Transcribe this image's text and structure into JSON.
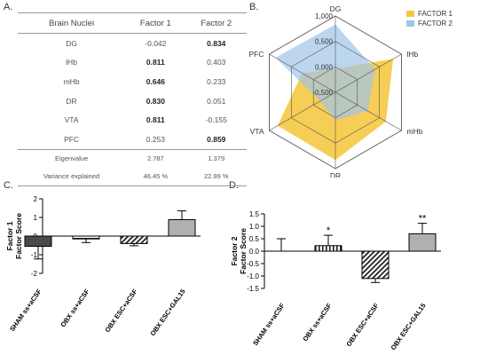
{
  "panels": {
    "a": "A.",
    "b": "B.",
    "c": "C.",
    "d": "D."
  },
  "table": {
    "headers": [
      "Brain Nuclei",
      "Factor 1",
      "Factor 2"
    ],
    "rows": [
      {
        "name": "DG",
        "f1": "-0.042",
        "f2": "0.834",
        "f1_bold": false,
        "f2_bold": true
      },
      {
        "name": "lHb",
        "f1": "0.811",
        "f2": "0.403",
        "f1_bold": true,
        "f2_bold": false
      },
      {
        "name": "mHb",
        "f1": "0.646",
        "f2": "0.233",
        "f1_bold": true,
        "f2_bold": false
      },
      {
        "name": "DR",
        "f1": "0.830",
        "f2": "0.051",
        "f1_bold": true,
        "f2_bold": false
      },
      {
        "name": "VTA",
        "f1": "0.811",
        "f2": "-0.155",
        "f1_bold": true,
        "f2_bold": false
      },
      {
        "name": "PFC",
        "f1": "0.253",
        "f2": "0.859",
        "f1_bold": false,
        "f2_bold": true
      }
    ],
    "eigenvalue": {
      "label": "Eigenvalue",
      "f1": "2.787",
      "f2": "1.379"
    },
    "variance": {
      "label": "Variance explained",
      "f1": "46.45 %",
      "f2": "22.99 %"
    }
  },
  "colors": {
    "factor1": "#f5c842",
    "factor2": "#9fc5e8",
    "bar_dark": "#4a4a4a",
    "bar_grey": "#b0b0b0"
  },
  "chart_data": [
    {
      "type": "radar",
      "axes": [
        "DG",
        "lHb",
        "mHb",
        "DR",
        "VTA",
        "PFC"
      ],
      "tick_labels": [
        "1,000",
        "0,500",
        "0,000",
        "-0,500"
      ],
      "range": [
        -0.5,
        1.0
      ],
      "series": [
        {
          "name": "FACTOR 1",
          "values": [
            -0.042,
            0.811,
            0.646,
            0.83,
            0.811,
            0.253
          ],
          "color": "#f5c842"
        },
        {
          "name": "FACTOR 2",
          "values": [
            0.834,
            0.403,
            0.233,
            0.051,
            -0.155,
            0.859
          ],
          "color": "#9fc5e8"
        }
      ],
      "legend_position": "top-right"
    },
    {
      "type": "bar",
      "ylabel": "Factor 1\nFactor Score",
      "ylim": [
        -2,
        2
      ],
      "yticks": [
        "-2",
        "-1",
        "0",
        "1",
        "2"
      ],
      "categories": [
        "SHAM ss+aCSF",
        "OBX ss+aCSF",
        "OBX ESC+aCSF",
        "OBX ESC+GAL15"
      ],
      "values": [
        -0.55,
        -0.15,
        -0.4,
        0.88
      ],
      "errors": [
        0.68,
        0.2,
        0.12,
        0.47
      ],
      "significance": [
        "",
        "",
        "",
        ""
      ],
      "patterns": [
        "dark",
        "hstripe",
        "diag",
        "grey"
      ]
    },
    {
      "type": "bar",
      "ylabel": "Factor 2\nFactor Score",
      "ylim": [
        -1.5,
        1.5
      ],
      "yticks": [
        "-1.5",
        "-1.0",
        "-0.5",
        "0.0",
        "0.5",
        "1.0",
        "1.5"
      ],
      "categories": [
        "SHAM ss+aCSF",
        "OBX ss+aCSF",
        "OBX ESC+aCSF",
        "OBX ESC+GAL15"
      ],
      "values": [
        0.0,
        0.22,
        -1.1,
        0.7
      ],
      "errors": [
        0.5,
        0.42,
        0.16,
        0.42
      ],
      "significance": [
        "",
        "*",
        "",
        "**"
      ],
      "patterns": [
        "dark",
        "vstripe",
        "diag",
        "grey"
      ]
    }
  ]
}
